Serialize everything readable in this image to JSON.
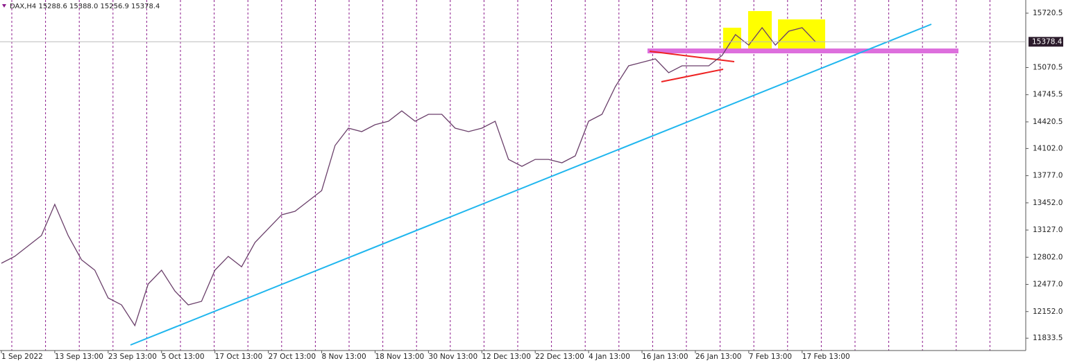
{
  "chart_data": {
    "type": "line",
    "title": "DAX,H4  15288.6 15388.0 15256.9 15378.4",
    "categories": [
      "1 Sep 2022",
      null,
      null,
      null,
      "13 Sep 13:00",
      null,
      null,
      null,
      "23 Sep 13:00",
      null,
      null,
      null,
      "5 Oct 13:00",
      null,
      null,
      null,
      "17 Oct 13:00",
      null,
      null,
      null,
      "27 Oct 13:00",
      null,
      null,
      null,
      "8 Nov 13:00",
      null,
      null,
      null,
      "18 Nov 13:00",
      null,
      null,
      null,
      "30 Nov 13:00",
      null,
      null,
      null,
      "12 Dec 13:00",
      null,
      null,
      null,
      "22 Dec 13:00",
      null,
      null,
      null,
      "4 Jan 13:00",
      null,
      null,
      null,
      "16 Jan 13:00",
      null,
      null,
      null,
      "26 Jan 13:00",
      null,
      null,
      null,
      "7 Feb 13:00",
      null,
      null,
      null,
      "17 Feb 13:00",
      null
    ],
    "series": [
      {
        "name": "DAX",
        "color": "#6a3f6a",
        "values": [
          12730,
          12812,
          12937,
          13061,
          13434,
          13061,
          12771,
          12647,
          12315,
          12232,
          11984,
          12481,
          12647,
          12398,
          12232,
          12274,
          12647,
          12812,
          12688,
          12978,
          13143,
          13309,
          13351,
          13475,
          13599,
          14138,
          14345,
          14304,
          14387,
          14428,
          14552,
          14428,
          14511,
          14511,
          14345,
          14304,
          14345,
          14428,
          13972,
          13889,
          13972,
          13972,
          13931,
          14014,
          14428,
          14511,
          14842,
          15091,
          15132,
          15174,
          15008,
          15091,
          15091,
          15091,
          15215,
          15464,
          15339,
          15547,
          15339,
          15505,
          15547,
          15378.4
        ]
      }
    ],
    "last_price": 15378.4,
    "ylim": [
      11686,
      15878
    ],
    "yticks": [
      15720.5,
      15070.5,
      14745.5,
      14420.5,
      {
        "value": 14102,
        "label": "14102.0"
      },
      {
        "value": 13777,
        "label": "13777.0"
      },
      {
        "value": 13452,
        "label": "13452.0"
      },
      {
        "value": 13127,
        "label": "13127.0"
      },
      {
        "value": 12802,
        "label": "12802.0"
      },
      {
        "value": 12477,
        "label": "12477.0"
      },
      {
        "value": 12152,
        "label": "12152.0"
      },
      11833.5
    ],
    "grid": true
  }
}
